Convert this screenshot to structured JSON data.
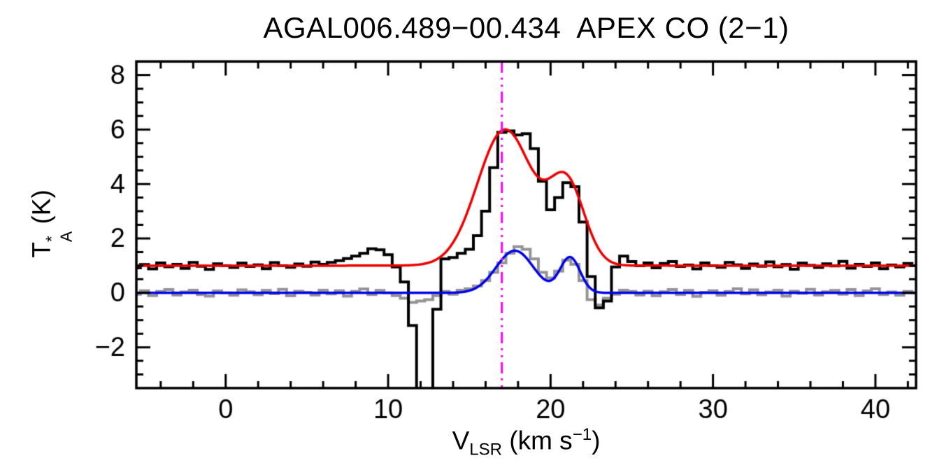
{
  "figure": {
    "title": "AGAL006.489−00.434  APEX CO (2−1)",
    "ylabel": {
      "base": "T",
      "sup": "*",
      "sub": "A",
      "unit": " (K)"
    },
    "xlabel": {
      "base": "V",
      "sub": "LSR",
      "unit_pre": " (km s",
      "sup": "−1",
      "unit_post": ")"
    }
  },
  "chart_data": {
    "type": "line",
    "title": "AGAL006.489-00.434 APEX CO (2-1)",
    "xlabel": "V_LSR (km s^-1)",
    "ylabel": "T_A^* (K)",
    "xlim": [
      -5.5,
      42.5
    ],
    "ylim": [
      -3.5,
      8.5
    ],
    "x_ticks": [
      0,
      10,
      20,
      30,
      40
    ],
    "x_minor_step": 2,
    "y_ticks": [
      -2,
      0,
      2,
      4,
      6,
      8
    ],
    "y_minor_step": 0.5,
    "grid": false,
    "legend": "none",
    "reference_line": {
      "x": 17.0,
      "color": "#ff00ff",
      "style": "dash-dot"
    },
    "v_start": -5.5,
    "v_step": 0.5,
    "series": [
      {
        "name": "black-spectrum-histogram",
        "type": "histogram",
        "color": "#000000",
        "baseline_level": 1.0,
        "values": [
          0.92,
          1.04,
          0.88,
          1.1,
          0.96,
          1.05,
          0.9,
          1.12,
          0.98,
          0.86,
          1.07,
          1.0,
          0.93,
          1.09,
          0.97,
          1.03,
          0.89,
          1.11,
          1.0,
          0.94,
          1.06,
          0.98,
          1.13,
          1.05,
          1.12,
          1.18,
          1.26,
          1.35,
          1.45,
          1.62,
          1.58,
          1.4,
          0.95,
          0.4,
          -1.2,
          -3.6,
          -3.6,
          -0.6,
          1.25,
          1.3,
          1.45,
          1.6,
          2.1,
          3.0,
          4.6,
          5.9,
          5.95,
          5.8,
          5.85,
          5.3,
          4.1,
          3.05,
          3.5,
          4.05,
          3.9,
          2.6,
          0.6,
          -0.55,
          -0.3,
          0.95,
          1.35,
          1.15,
          1.0,
          1.1,
          0.92,
          1.08,
          1.15,
          0.97,
          1.02,
          0.88,
          1.1,
          1.0,
          0.94,
          1.12,
          1.03,
          0.9,
          1.06,
          0.98,
          1.14,
          0.96,
          1.04,
          0.87,
          1.09,
          1.01,
          0.93,
          1.07,
          0.99,
          1.16,
          0.91,
          1.05,
          0.97,
          1.1,
          0.89,
          1.02,
          0.95,
          1.08,
          1.0
        ]
      },
      {
        "name": "gray-spectrum-histogram",
        "type": "histogram",
        "color": "#949494",
        "baseline_level": 0.0,
        "values": [
          -0.05,
          0.08,
          -0.1,
          0.05,
          0.12,
          -0.08,
          0.03,
          0.1,
          -0.06,
          -0.12,
          0.07,
          0.0,
          -0.09,
          0.11,
          0.04,
          -0.07,
          0.09,
          -0.03,
          0.13,
          -0.11,
          0.06,
          0.02,
          -0.08,
          0.1,
          -0.04,
          0.08,
          -0.12,
          0.05,
          0.14,
          -0.06,
          0.09,
          0.0,
          -0.1,
          -0.2,
          -0.35,
          -0.3,
          -0.25,
          -0.1,
          0.05,
          -0.05,
          0.1,
          0.15,
          0.25,
          0.45,
          0.75,
          1.1,
          1.45,
          1.7,
          1.6,
          1.25,
          0.75,
          0.55,
          0.8,
          1.2,
          1.05,
          0.45,
          -0.25,
          -0.45,
          -0.2,
          -0.05,
          0.1,
          0.05,
          -0.08,
          0.06,
          -0.11,
          0.04,
          0.12,
          -0.06,
          0.09,
          -0.13,
          0.02,
          0.08,
          -0.09,
          0.05,
          0.15,
          -0.04,
          0.11,
          -0.07,
          0.03,
          0.1,
          -0.12,
          0.06,
          -0.02,
          0.13,
          -0.08,
          0.04,
          0.09,
          -0.05,
          0.12,
          -0.1,
          0.07,
          0.15,
          -0.06,
          0.03,
          -0.09,
          0.05,
          0.0
        ]
      },
      {
        "name": "red-model-fit",
        "type": "gaussian-model",
        "color": "#ee0000",
        "baseline": 1.0,
        "components": [
          {
            "center": 17.2,
            "amp": 5.0,
            "sigma": 1.7
          },
          {
            "center": 21.0,
            "amp": 2.95,
            "sigma": 1.1
          }
        ]
      },
      {
        "name": "blue-model-fit",
        "type": "gaussian-model",
        "color": "#0000ee",
        "baseline": 0.0,
        "components": [
          {
            "center": 17.8,
            "amp": 1.55,
            "sigma": 1.15
          },
          {
            "center": 21.2,
            "amp": 1.3,
            "sigma": 0.62
          }
        ]
      }
    ]
  }
}
